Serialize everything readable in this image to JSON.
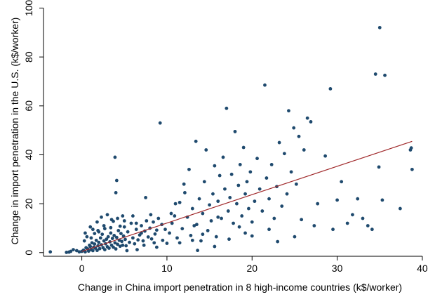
{
  "chart_data": {
    "type": "scatter",
    "title": "",
    "xlabel": "Change in China import penetration in 8 high-income countries (k$/worker)",
    "ylabel": "Change in import penetration in the U.S. (k$/worker)",
    "xlim": [
      -4.5,
      40.5
    ],
    "ylim": [
      -1.5,
      101
    ],
    "xticks": [
      0,
      10,
      20,
      30,
      40
    ],
    "yticks": [
      0,
      20,
      40,
      60,
      80,
      100
    ],
    "grid": false,
    "legend": "none",
    "colors": {
      "points": "#1f4a6e",
      "fit_line": "#a0282a"
    },
    "fit_line": {
      "x": [
        0,
        38.8
      ],
      "y": [
        0.5,
        45.5
      ]
    },
    "series": [
      {
        "points": [
          [
            -3.7,
            0.3
          ],
          [
            -1.8,
            0.1
          ],
          [
            -1.5,
            0.2
          ],
          [
            -1.3,
            0.5
          ],
          [
            -1.0,
            1.2
          ],
          [
            -0.6,
            0.8
          ],
          [
            -0.3,
            0.3
          ],
          [
            0.0,
            0.5
          ],
          [
            0.2,
            1.0
          ],
          [
            0.4,
            0.3
          ],
          [
            0.5,
            2.0
          ],
          [
            0.7,
            1.5
          ],
          [
            0.8,
            0.6
          ],
          [
            0.9,
            3.0
          ],
          [
            1.0,
            2.5
          ],
          [
            1.1,
            1.2
          ],
          [
            1.2,
            4.0
          ],
          [
            1.3,
            0.8
          ],
          [
            1.4,
            2.2
          ],
          [
            1.5,
            3.5
          ],
          [
            1.6,
            1.8
          ],
          [
            1.7,
            5.0
          ],
          [
            1.8,
            0.9
          ],
          [
            1.9,
            2.8
          ],
          [
            2.0,
            4.2
          ],
          [
            2.1,
            1.6
          ],
          [
            2.2,
            6.0
          ],
          [
            2.3,
            3.2
          ],
          [
            2.4,
            7.5
          ],
          [
            2.5,
            2.0
          ],
          [
            2.6,
            4.8
          ],
          [
            2.7,
            1.2
          ],
          [
            2.8,
            3.6
          ],
          [
            2.9,
            5.5
          ],
          [
            3.0,
            2.4
          ],
          [
            3.1,
            6.5
          ],
          [
            3.2,
            1.8
          ],
          [
            3.3,
            4.4
          ],
          [
            3.4,
            8.0
          ],
          [
            3.5,
            3.0
          ],
          [
            3.6,
            5.8
          ],
          [
            3.7,
            2.2
          ],
          [
            3.8,
            7.0
          ],
          [
            3.9,
            4.0
          ],
          [
            4.0,
            1.5
          ],
          [
            4.1,
            6.2
          ],
          [
            4.2,
            3.4
          ],
          [
            4.3,
            9.0
          ],
          [
            4.4,
            5.0
          ],
          [
            4.5,
            2.6
          ],
          [
            4.6,
            7.8
          ],
          [
            4.7,
            4.6
          ],
          [
            4.8,
            3.0
          ],
          [
            4.9,
            6.8
          ],
          [
            5.0,
            10.5
          ],
          [
            5.1,
            5.4
          ],
          [
            5.2,
            2.8
          ],
          [
            5.4,
            8.5
          ],
          [
            5.6,
            4.2
          ],
          [
            5.8,
            12.0
          ],
          [
            6.0,
            6.0
          ],
          [
            6.2,
            3.6
          ],
          [
            6.4,
            9.5
          ],
          [
            6.6,
            5.2
          ],
          [
            6.8,
            7.2
          ],
          [
            7.0,
            11.0
          ],
          [
            7.2,
            4.8
          ],
          [
            7.4,
            8.8
          ],
          [
            7.6,
            13.0
          ],
          [
            7.8,
            6.4
          ],
          [
            8.0,
            10.0
          ],
          [
            8.2,
            5.6
          ],
          [
            8.4,
            12.5
          ],
          [
            8.6,
            7.6
          ],
          [
            8.8,
            9.2
          ],
          [
            9.0,
            14.0
          ],
          [
            9.2,
            53.0
          ],
          [
            9.4,
            11.5
          ],
          [
            1.0,
            10.5
          ],
          [
            1.3,
            9.5
          ],
          [
            1.5,
            7.8
          ],
          [
            1.8,
            12.5
          ],
          [
            2.0,
            8.5
          ],
          [
            2.3,
            14.5
          ],
          [
            2.6,
            11.0
          ],
          [
            3.0,
            15.5
          ],
          [
            3.4,
            10.2
          ],
          [
            3.7,
            12.8
          ],
          [
            4.2,
            14.0
          ],
          [
            4.5,
            10.8
          ],
          [
            4.8,
            15.0
          ],
          [
            3.9,
            39.0
          ],
          [
            4.1,
            29.5
          ],
          [
            4.0,
            24.5
          ],
          [
            7.5,
            22.5
          ],
          [
            8.1,
            15.5
          ],
          [
            10.0,
            3.8
          ],
          [
            10.3,
            8.0
          ],
          [
            10.6,
            12.0
          ],
          [
            10.9,
            15.0
          ],
          [
            11.2,
            6.0
          ],
          [
            11.5,
            20.5
          ],
          [
            11.8,
            9.8
          ],
          [
            12.1,
            24.5
          ],
          [
            12.4,
            14.5
          ],
          [
            12.6,
            34.0
          ],
          [
            12.8,
            7.0
          ],
          [
            13.0,
            18.0
          ],
          [
            13.2,
            11.0
          ],
          [
            13.4,
            45.5
          ],
          [
            13.6,
            0.9
          ],
          [
            13.8,
            22.0
          ],
          [
            14.0,
            4.8
          ],
          [
            14.2,
            16.0
          ],
          [
            14.4,
            29.0
          ],
          [
            14.6,
            42.0
          ],
          [
            14.8,
            9.0
          ],
          [
            15.0,
            19.5
          ],
          [
            15.2,
            13.0
          ],
          [
            15.4,
            24.0
          ],
          [
            15.6,
            35.5
          ],
          [
            15.8,
            6.5
          ],
          [
            16.0,
            21.0
          ],
          [
            16.2,
            31.5
          ],
          [
            16.4,
            14.0
          ],
          [
            16.6,
            39.0
          ],
          [
            16.8,
            26.0
          ],
          [
            17.0,
            59.0
          ],
          [
            17.2,
            17.0
          ],
          [
            17.4,
            22.5
          ],
          [
            17.6,
            32.0
          ],
          [
            17.8,
            12.0
          ],
          [
            18.0,
            49.5
          ],
          [
            18.2,
            20.0
          ],
          [
            18.4,
            27.5
          ],
          [
            18.6,
            36.0
          ],
          [
            18.8,
            15.0
          ],
          [
            19.0,
            43.0
          ],
          [
            19.2,
            24.0
          ],
          [
            19.4,
            29.0
          ],
          [
            19.6,
            18.0
          ],
          [
            19.8,
            33.0
          ],
          [
            20.0,
            12.5
          ],
          [
            20.3,
            21.0
          ],
          [
            20.6,
            38.5
          ],
          [
            20.9,
            26.0
          ],
          [
            21.2,
            17.0
          ],
          [
            21.5,
            68.5
          ],
          [
            21.7,
            30.5
          ],
          [
            22.0,
            22.0
          ],
          [
            22.3,
            36.0
          ],
          [
            22.6,
            14.0
          ],
          [
            22.9,
            27.0
          ],
          [
            23.2,
            45.0
          ],
          [
            23.5,
            19.0
          ],
          [
            23.8,
            40.5
          ],
          [
            24.1,
            24.0
          ],
          [
            24.3,
            58.0
          ],
          [
            24.6,
            33.0
          ],
          [
            24.9,
            51.0
          ],
          [
            25.2,
            28.0
          ],
          [
            25.5,
            47.5
          ],
          [
            25.8,
            13.5
          ],
          [
            26.1,
            42.0
          ],
          [
            26.5,
            55.0
          ],
          [
            26.9,
            53.5
          ],
          [
            27.3,
            11.0
          ],
          [
            27.7,
            20.0
          ],
          [
            28.6,
            39.5
          ],
          [
            29.2,
            67.0
          ],
          [
            29.5,
            9.5
          ],
          [
            30.0,
            21.5
          ],
          [
            30.5,
            29.0
          ],
          [
            31.2,
            12.0
          ],
          [
            31.8,
            15.5
          ],
          [
            32.4,
            22.0
          ],
          [
            33.0,
            14.0
          ],
          [
            33.6,
            11.0
          ],
          [
            34.1,
            9.5
          ],
          [
            34.5,
            73.0
          ],
          [
            34.9,
            35.0
          ],
          [
            35.0,
            92.0
          ],
          [
            35.3,
            21.5
          ],
          [
            35.6,
            72.5
          ],
          [
            37.4,
            18.0
          ],
          [
            38.6,
            42.0
          ],
          [
            38.7,
            42.8
          ],
          [
            38.8,
            34.0
          ],
          [
            13.0,
            5.0
          ],
          [
            14.2,
            7.5
          ],
          [
            15.6,
            2.5
          ],
          [
            17.3,
            5.5
          ],
          [
            19.2,
            8.0
          ],
          [
            11.0,
            20.0
          ],
          [
            12.0,
            28.0
          ],
          [
            16.0,
            14.5
          ],
          [
            18.5,
            10.5
          ],
          [
            20.0,
            6.8
          ],
          [
            23.0,
            4.5
          ],
          [
            25.0,
            6.5
          ],
          [
            22.0,
            9.5
          ],
          [
            13.5,
            11.5
          ],
          [
            10.5,
            16.0
          ],
          [
            9.5,
            5.0
          ],
          [
            8.8,
            2.2
          ],
          [
            6.5,
            1.2
          ],
          [
            5.3,
            0.8
          ],
          [
            7.3,
            3.0
          ],
          [
            0.3,
            4.8
          ],
          [
            0.6,
            6.5
          ],
          [
            0.4,
            8.0
          ],
          [
            1.1,
            6.0
          ],
          [
            1.9,
            9.0
          ],
          [
            2.7,
            9.8
          ],
          [
            3.5,
            13.5
          ],
          [
            5.0,
            13.0
          ],
          [
            6.0,
            15.0
          ],
          [
            6.4,
            12.0
          ],
          [
            7.0,
            8.0
          ],
          [
            8.5,
            4.0
          ],
          [
            9.8,
            9.5
          ],
          [
            11.5,
            4.0
          ]
        ]
      }
    ]
  }
}
